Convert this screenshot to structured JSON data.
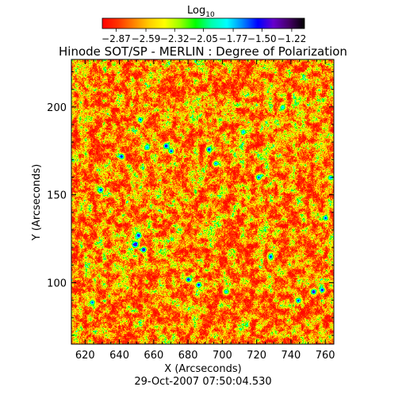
{
  "chart_data": {
    "type": "heatmap",
    "title": "Hinode SOT/SP - MERLIN : Degree of Polarization",
    "xlabel": "X (Arcseconds)",
    "ylabel": "Y (Arcseconds)",
    "footer": "29-Oct-2007 07:50:04.530",
    "xlim": [
      612,
      765
    ],
    "ylim": [
      65,
      227
    ],
    "x_ticks": [
      620,
      640,
      660,
      680,
      700,
      720,
      740,
      760
    ],
    "y_ticks": [
      100,
      150,
      200
    ],
    "x_tick_labels": [
      "620",
      "640",
      "660",
      "680",
      "700",
      "720",
      "740",
      "760"
    ],
    "y_tick_labels": [
      "100",
      "150",
      "200"
    ],
    "colorbar": {
      "label_base": "Log",
      "label_sub": "10",
      "range": [
        -3.0,
        -1.1
      ],
      "ticks": [
        -2.87,
        -2.59,
        -2.32,
        -2.05,
        -1.77,
        -1.5,
        -1.22
      ],
      "tick_labels": [
        "−2.87",
        "−2.59",
        "−2.32",
        "−2.05",
        "−1.77",
        "−1.50",
        "−1.22"
      ],
      "colormap": [
        "#ff0000",
        "#ff3300",
        "#ff8000",
        "#ffcc00",
        "#ffff00",
        "#99ff00",
        "#00ff00",
        "#00ffaa",
        "#00ffff",
        "#0088ff",
        "#0000ff",
        "#6600cc",
        "#440066",
        "#000000"
      ]
    },
    "compact_features": [
      {
        "x": 629,
        "y": 153,
        "v": -1.55
      },
      {
        "x": 641,
        "y": 172,
        "v": -1.5
      },
      {
        "x": 652,
        "y": 193,
        "v": -1.6
      },
      {
        "x": 656,
        "y": 177,
        "v": -1.7
      },
      {
        "x": 649,
        "y": 122,
        "v": -1.35
      },
      {
        "x": 654,
        "y": 119,
        "v": -1.3
      },
      {
        "x": 651,
        "y": 127,
        "v": -1.45
      },
      {
        "x": 667,
        "y": 178,
        "v": -1.4
      },
      {
        "x": 670,
        "y": 175,
        "v": -1.55
      },
      {
        "x": 692,
        "y": 176,
        "v": -1.45
      },
      {
        "x": 696,
        "y": 168,
        "v": -1.65
      },
      {
        "x": 680,
        "y": 102,
        "v": -1.4
      },
      {
        "x": 686,
        "y": 99,
        "v": -1.5
      },
      {
        "x": 721,
        "y": 160,
        "v": -1.6
      },
      {
        "x": 728,
        "y": 115,
        "v": -1.55
      },
      {
        "x": 753,
        "y": 95,
        "v": -1.3
      },
      {
        "x": 758,
        "y": 96,
        "v": -1.45
      },
      {
        "x": 760,
        "y": 137,
        "v": -1.55
      },
      {
        "x": 763,
        "y": 160,
        "v": -1.65
      },
      {
        "x": 624,
        "y": 89,
        "v": -1.6
      },
      {
        "x": 702,
        "y": 95,
        "v": -1.7
      },
      {
        "x": 744,
        "y": 90,
        "v": -1.55
      },
      {
        "x": 712,
        "y": 186,
        "v": -1.7
      },
      {
        "x": 735,
        "y": 200,
        "v": -1.75
      }
    ]
  }
}
